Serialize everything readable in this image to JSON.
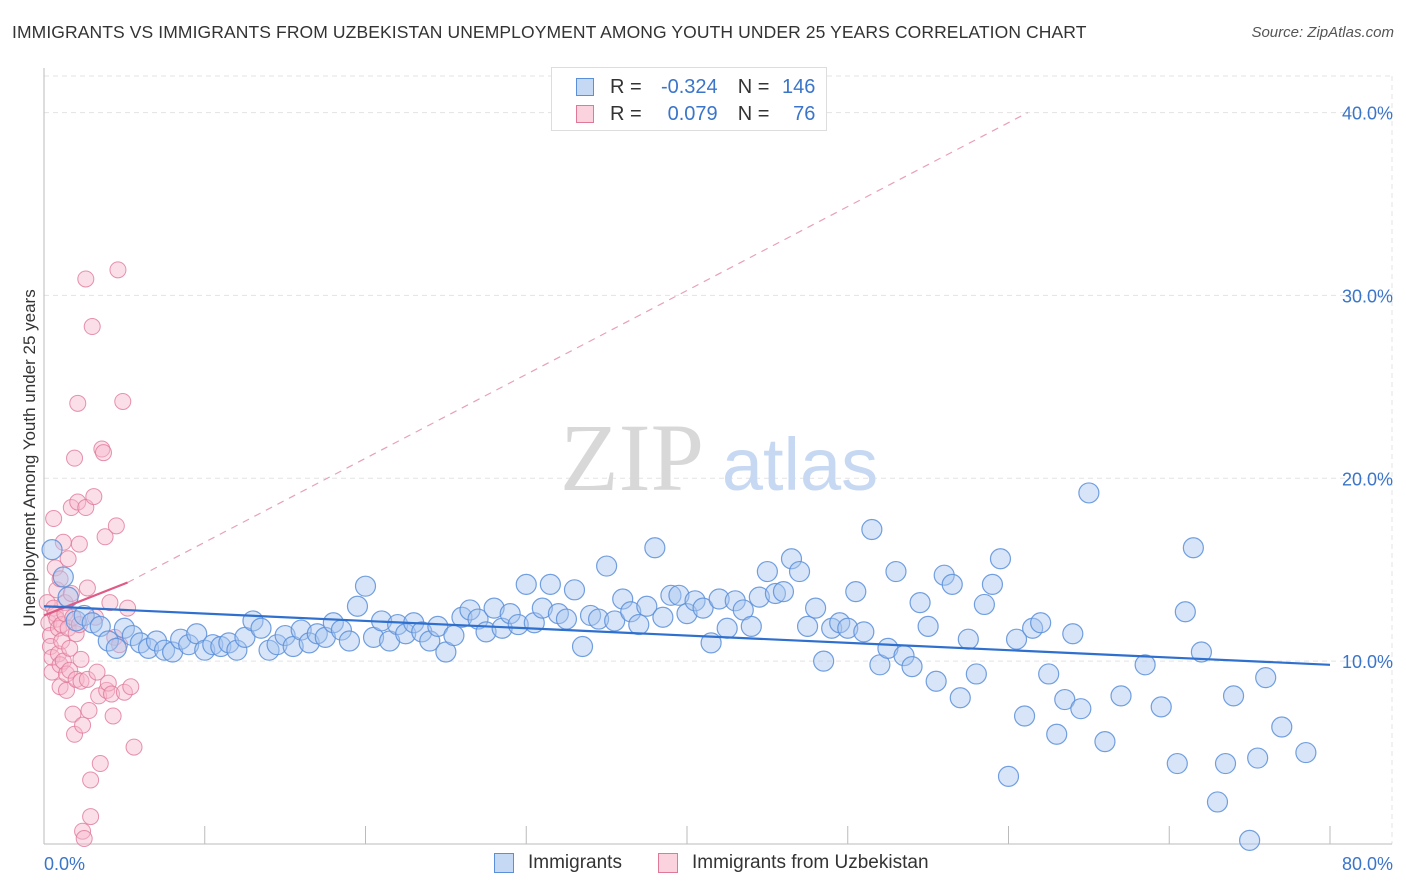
{
  "title": "IMMIGRANTS VS IMMIGRANTS FROM UZBEKISTAN UNEMPLOYMENT AMONG YOUTH UNDER 25 YEARS CORRELATION CHART",
  "source": "Source: ZipAtlas.com",
  "watermark": {
    "zip": "ZIP",
    "atlas": "atlas"
  },
  "legend": {
    "rows": [
      {
        "r_label": "R =",
        "r_value": "-0.324",
        "n_label": "N =",
        "n_value": "146",
        "color": "#a8c6f0",
        "border": "#5b8fd9"
      },
      {
        "r_label": "R =",
        "r_value": "0.079",
        "n_label": "N =",
        "n_value": "76",
        "color": "#f7b8cb",
        "border": "#e07898"
      }
    ]
  },
  "bottom_legend": [
    "Immigrants",
    "Immigrants from Uzbekistan"
  ],
  "chart_data": {
    "type": "scatter",
    "title": "IMMIGRANTS VS IMMIGRANTS FROM UZBEKISTAN UNEMPLOYMENT AMONG YOUTH UNDER 25 YEARS CORRELATION CHART",
    "ylabel": "Unemployment Among Youth under 25 years",
    "xlabel": "",
    "xlim": [
      0,
      80
    ],
    "ylim": [
      0,
      42
    ],
    "x_tick_labels": [
      "0.0%",
      "80.0%"
    ],
    "y_tick_labels": [
      "10.0%",
      "20.0%",
      "30.0%",
      "40.0%"
    ],
    "y_ticks": [
      10,
      20,
      30,
      40
    ],
    "grid": true,
    "legend_position": "top-center",
    "series": [
      {
        "name": "Immigrants",
        "color": "#a8c6f0",
        "edge": "#5b8fd9",
        "trend_color": "#2f6fce",
        "trend": {
          "x": [
            0,
            80
          ],
          "y": [
            13.0,
            9.8
          ]
        },
        "points": [
          [
            0.5,
            16.1
          ],
          [
            1.2,
            14.6
          ],
          [
            1.5,
            13.5
          ],
          [
            2,
            12.2
          ],
          [
            2.5,
            12.5
          ],
          [
            3,
            12.1
          ],
          [
            3.5,
            11.9
          ],
          [
            4,
            11.1
          ],
          [
            4.5,
            10.7
          ],
          [
            5,
            11.8
          ],
          [
            5.5,
            11.4
          ],
          [
            6,
            11.0
          ],
          [
            6.5,
            10.7
          ],
          [
            7,
            11.1
          ],
          [
            7.5,
            10.6
          ],
          [
            8,
            10.5
          ],
          [
            8.5,
            11.2
          ],
          [
            9,
            10.9
          ],
          [
            9.5,
            11.5
          ],
          [
            10,
            10.6
          ],
          [
            10.5,
            10.9
          ],
          [
            11,
            10.8
          ],
          [
            11.5,
            11.0
          ],
          [
            12,
            10.6
          ],
          [
            12.5,
            11.3
          ],
          [
            13,
            12.2
          ],
          [
            13.5,
            11.8
          ],
          [
            14,
            10.6
          ],
          [
            14.5,
            10.9
          ],
          [
            15,
            11.4
          ],
          [
            15.5,
            10.8
          ],
          [
            16,
            11.7
          ],
          [
            16.5,
            11.0
          ],
          [
            17,
            11.5
          ],
          [
            17.5,
            11.3
          ],
          [
            18,
            12.1
          ],
          [
            18.5,
            11.7
          ],
          [
            19,
            11.1
          ],
          [
            19.5,
            13.0
          ],
          [
            20,
            14.1
          ],
          [
            20.5,
            11.3
          ],
          [
            21,
            12.2
          ],
          [
            21.5,
            11.1
          ],
          [
            22,
            12.0
          ],
          [
            22.5,
            11.5
          ],
          [
            23,
            12.1
          ],
          [
            23.5,
            11.6
          ],
          [
            24,
            11.1
          ],
          [
            24.5,
            11.9
          ],
          [
            25,
            10.5
          ],
          [
            25.5,
            11.4
          ],
          [
            26,
            12.4
          ],
          [
            26.5,
            12.8
          ],
          [
            27,
            12.3
          ],
          [
            27.5,
            11.6
          ],
          [
            28,
            12.9
          ],
          [
            28.5,
            11.8
          ],
          [
            29,
            12.6
          ],
          [
            29.5,
            12.0
          ],
          [
            30,
            14.2
          ],
          [
            30.5,
            12.1
          ],
          [
            31,
            12.9
          ],
          [
            31.5,
            14.2
          ],
          [
            32,
            12.6
          ],
          [
            32.5,
            12.3
          ],
          [
            33,
            13.9
          ],
          [
            33.5,
            10.8
          ],
          [
            34,
            12.5
          ],
          [
            34.5,
            12.3
          ],
          [
            35,
            15.2
          ],
          [
            35.5,
            12.2
          ],
          [
            36,
            13.4
          ],
          [
            36.5,
            12.7
          ],
          [
            37,
            12.0
          ],
          [
            37.5,
            13.0
          ],
          [
            38,
            16.2
          ],
          [
            38.5,
            12.4
          ],
          [
            39,
            13.6
          ],
          [
            39.5,
            13.6
          ],
          [
            40,
            12.6
          ],
          [
            40.5,
            13.3
          ],
          [
            41,
            12.9
          ],
          [
            41.5,
            11.0
          ],
          [
            42,
            13.4
          ],
          [
            42.5,
            11.8
          ],
          [
            43,
            13.3
          ],
          [
            43.5,
            12.8
          ],
          [
            44,
            11.9
          ],
          [
            44.5,
            13.5
          ],
          [
            45,
            14.9
          ],
          [
            45.5,
            13.7
          ],
          [
            46,
            13.8
          ],
          [
            46.5,
            15.6
          ],
          [
            47,
            14.9
          ],
          [
            47.5,
            11.9
          ],
          [
            48,
            12.9
          ],
          [
            48.5,
            10.0
          ],
          [
            49,
            11.8
          ],
          [
            49.5,
            12.1
          ],
          [
            50,
            11.8
          ],
          [
            50.5,
            13.8
          ],
          [
            51,
            11.6
          ],
          [
            51.5,
            17.2
          ],
          [
            52,
            9.8
          ],
          [
            52.5,
            10.7
          ],
          [
            53,
            14.9
          ],
          [
            53.5,
            10.3
          ],
          [
            54,
            9.7
          ],
          [
            54.5,
            13.2
          ],
          [
            55,
            11.9
          ],
          [
            55.5,
            8.9
          ],
          [
            56,
            14.7
          ],
          [
            56.5,
            14.2
          ],
          [
            57,
            8.0
          ],
          [
            57.5,
            11.2
          ],
          [
            58,
            9.3
          ],
          [
            58.5,
            13.1
          ],
          [
            59,
            14.2
          ],
          [
            59.5,
            15.6
          ],
          [
            60,
            3.7
          ],
          [
            60.5,
            11.2
          ],
          [
            61,
            7.0
          ],
          [
            61.5,
            11.8
          ],
          [
            62,
            12.1
          ],
          [
            62.5,
            9.3
          ],
          [
            63,
            6.0
          ],
          [
            63.5,
            7.9
          ],
          [
            64,
            11.5
          ],
          [
            64.5,
            7.4
          ],
          [
            65,
            19.2
          ],
          [
            66,
            5.6
          ],
          [
            67,
            8.1
          ],
          [
            68.5,
            9.8
          ],
          [
            69.5,
            7.5
          ],
          [
            70.5,
            4.4
          ],
          [
            71,
            12.7
          ],
          [
            71.5,
            16.2
          ],
          [
            72,
            10.5
          ],
          [
            73,
            2.3
          ],
          [
            73.5,
            4.4
          ],
          [
            74,
            8.1
          ],
          [
            75,
            0.2
          ],
          [
            75.5,
            4.7
          ],
          [
            76,
            9.1
          ],
          [
            77,
            6.4
          ],
          [
            78.5,
            5.0
          ]
        ]
      },
      {
        "name": "Immigrants from Uzbekistan",
        "color": "#f7b8cb",
        "edge": "#e07898",
        "trend_color": "#e05a86",
        "trend": {
          "x": [
            0,
            5.2
          ],
          "y": [
            12.5,
            14.3
          ]
        },
        "dashed_extension": {
          "x": [
            5.2,
            61.2
          ],
          "y": [
            14.3,
            40.0
          ]
        },
        "points": [
          [
            0.2,
            13.2
          ],
          [
            0.3,
            12.1
          ],
          [
            0.4,
            11.4
          ],
          [
            0.4,
            10.8
          ],
          [
            0.5,
            10.2
          ],
          [
            0.5,
            9.4
          ],
          [
            0.6,
            12.9
          ],
          [
            0.6,
            17.8
          ],
          [
            0.7,
            15.1
          ],
          [
            0.7,
            12.6
          ],
          [
            0.8,
            13.9
          ],
          [
            0.8,
            12.3
          ],
          [
            0.9,
            11.8
          ],
          [
            0.9,
            10.4
          ],
          [
            1.0,
            9.8
          ],
          [
            1.0,
            8.6
          ],
          [
            1.0,
            14.5
          ],
          [
            1.1,
            12.0
          ],
          [
            1.1,
            11.1
          ],
          [
            1.2,
            10.0
          ],
          [
            1.2,
            16.5
          ],
          [
            1.3,
            13.2
          ],
          [
            1.3,
            12.6
          ],
          [
            1.4,
            9.3
          ],
          [
            1.4,
            8.4
          ],
          [
            1.5,
            15.6
          ],
          [
            1.5,
            11.8
          ],
          [
            1.6,
            10.7
          ],
          [
            1.6,
            9.5
          ],
          [
            1.7,
            18.4
          ],
          [
            1.7,
            13.7
          ],
          [
            1.8,
            12.4
          ],
          [
            1.8,
            7.1
          ],
          [
            1.9,
            6.0
          ],
          [
            1.9,
            21.1
          ],
          [
            2.0,
            11.5
          ],
          [
            2.0,
            9.0
          ],
          [
            2.1,
            24.1
          ],
          [
            2.1,
            18.7
          ],
          [
            2.2,
            16.4
          ],
          [
            2.2,
            12.0
          ],
          [
            2.3,
            10.1
          ],
          [
            2.3,
            8.9
          ],
          [
            2.4,
            6.5
          ],
          [
            2.4,
            0.7
          ],
          [
            2.5,
            0.3
          ],
          [
            2.6,
            30.9
          ],
          [
            2.6,
            18.4
          ],
          [
            2.7,
            14.0
          ],
          [
            2.7,
            9.0
          ],
          [
            2.8,
            7.3
          ],
          [
            2.9,
            3.5
          ],
          [
            2.9,
            1.5
          ],
          [
            3.0,
            28.3
          ],
          [
            3.1,
            19.0
          ],
          [
            3.2,
            12.4
          ],
          [
            3.3,
            9.4
          ],
          [
            3.4,
            8.1
          ],
          [
            3.5,
            4.4
          ],
          [
            3.6,
            21.6
          ],
          [
            3.7,
            21.4
          ],
          [
            3.8,
            16.8
          ],
          [
            3.9,
            8.4
          ],
          [
            4.0,
            8.8
          ],
          [
            4.1,
            13.2
          ],
          [
            4.2,
            8.2
          ],
          [
            4.3,
            7.0
          ],
          [
            4.4,
            11.3
          ],
          [
            4.5,
            17.4
          ],
          [
            4.6,
            31.4
          ],
          [
            4.7,
            10.9
          ],
          [
            4.9,
            24.2
          ],
          [
            5.0,
            8.3
          ],
          [
            5.2,
            12.9
          ],
          [
            5.4,
            8.6
          ],
          [
            5.6,
            5.3
          ]
        ]
      }
    ]
  }
}
